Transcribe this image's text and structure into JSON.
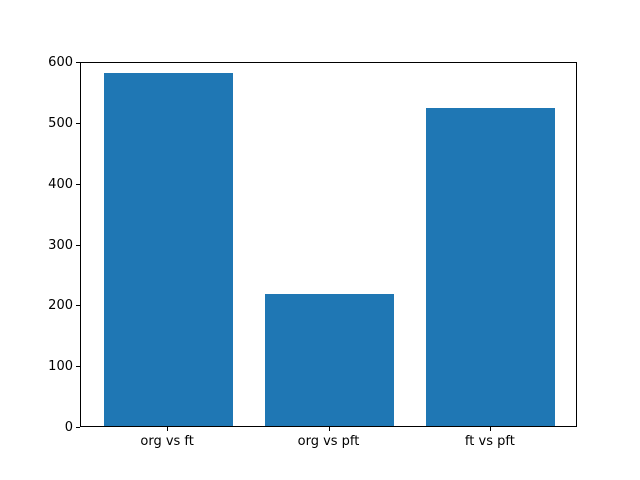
{
  "chart_data": {
    "type": "bar",
    "categories": [
      "org vs ft",
      "org vs pft",
      "ft vs pft"
    ],
    "values": [
      580,
      217,
      523
    ],
    "title": "",
    "xlabel": "",
    "ylabel": "",
    "ylim": [
      0,
      600
    ],
    "yticks": [
      0,
      100,
      200,
      300,
      400,
      500,
      600
    ],
    "bar_color": "#1f77b4",
    "axes_background": "#ffffff",
    "figure_background": "#ffffff",
    "spine_color": "#000000",
    "tick_label_color": "#000000",
    "grid": false,
    "legend": null
  }
}
